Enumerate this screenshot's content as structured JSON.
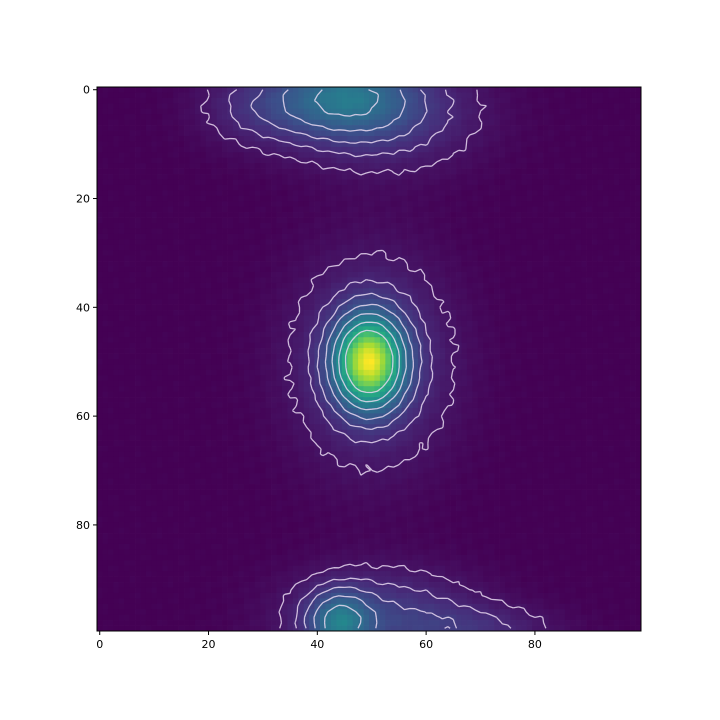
{
  "chart_data": {
    "type": "heatmap",
    "title": "",
    "xlabel": "",
    "ylabel": "",
    "xlim": [
      0,
      99
    ],
    "ylim": [
      99,
      0
    ],
    "x_ticks": [
      "0",
      "20",
      "40",
      "60",
      "80"
    ],
    "y_ticks": [
      "0",
      "20",
      "40",
      "60",
      "80"
    ],
    "colormap": "viridis",
    "contour_color": "#e8d8f0",
    "grid": false,
    "legend": "none",
    "blobs": [
      {
        "name": "central",
        "cx": 49.5,
        "cy": 50,
        "amp": 1.0,
        "sx": 4.2,
        "sy": 5.5
      },
      {
        "name": "central-halo",
        "cx": 50,
        "cy": 50,
        "amp": 0.22,
        "sx": 10,
        "sy": 13
      },
      {
        "name": "top-1",
        "cx": 45,
        "cy": 1,
        "amp": 0.32,
        "sx": 8,
        "sy": 5
      },
      {
        "name": "top-2",
        "cx": 52,
        "cy": 4,
        "amp": 0.22,
        "sx": 12,
        "sy": 7
      },
      {
        "name": "top-3",
        "cx": 30,
        "cy": 3,
        "amp": 0.16,
        "sx": 8,
        "sy": 5
      },
      {
        "name": "bottom-1",
        "cx": 44,
        "cy": 98,
        "amp": 0.38,
        "sx": 4,
        "sy": 4
      },
      {
        "name": "bottom-2",
        "cx": 52,
        "cy": 97,
        "amp": 0.22,
        "sx": 12,
        "sy": 6
      },
      {
        "name": "bottom-3",
        "cx": 70,
        "cy": 99,
        "amp": 0.12,
        "sx": 10,
        "sy": 3
      }
    ],
    "contour_levels": [
      0.07,
      0.14,
      0.22,
      0.32,
      0.45,
      0.6,
      0.78
    ]
  }
}
